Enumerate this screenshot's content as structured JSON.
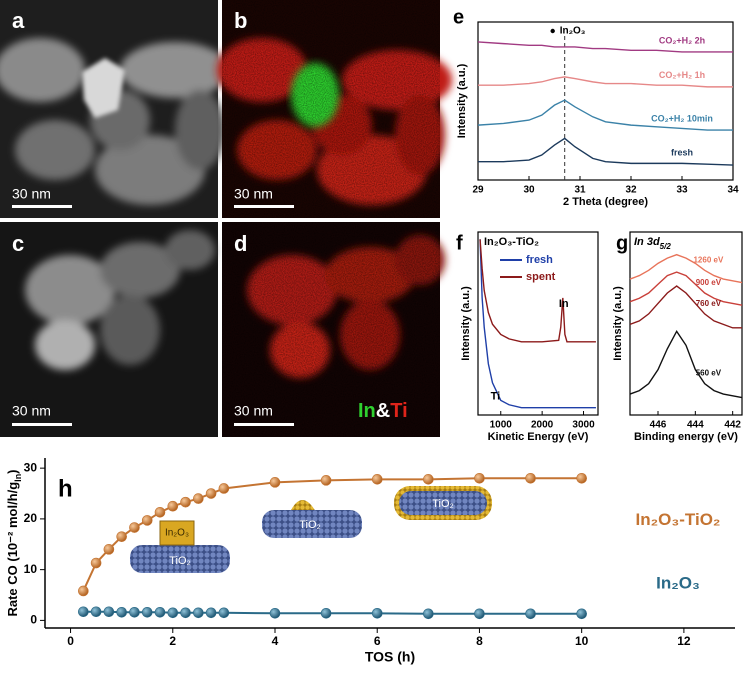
{
  "images": [
    {
      "label": "a",
      "scale_bar": "30 nm"
    },
    {
      "label": "b",
      "scale_bar": "30 nm"
    },
    {
      "label": "c",
      "scale_bar": "30 nm"
    },
    {
      "label": "d",
      "scale_bar": "30 nm",
      "legend": [
        "In",
        "&",
        "Ti"
      ]
    }
  ],
  "chart_data": [
    {
      "type": "line",
      "panel": "e",
      "marker_label": "In₂O₃",
      "ref_x": 30.7,
      "xlabel": "2 Theta (degree)",
      "ylabel": "Intensity  (a.u.)",
      "xlim": [
        29,
        34
      ],
      "xticks": [
        29,
        30,
        31,
        32,
        33,
        34
      ],
      "ylim": [
        0,
        9.5
      ],
      "x": [
        29,
        29.5,
        30,
        30.25,
        30.5,
        30.7,
        30.9,
        31.25,
        31.5,
        32,
        32.5,
        33,
        33.5,
        34
      ],
      "series": [
        {
          "name": "fresh",
          "color": "#1c3a5c",
          "values": [
            1.1,
            1.1,
            1.2,
            1.5,
            2.1,
            2.5,
            2.0,
            1.3,
            1.1,
            1.0,
            1.0,
            1.0,
            0.95,
            0.9
          ]
        },
        {
          "name": "CO₂+H₂ 10min",
          "color": "#3b82a8",
          "values": [
            3.3,
            3.4,
            3.6,
            3.9,
            4.5,
            4.8,
            4.4,
            3.8,
            3.5,
            3.3,
            3.2,
            3.1,
            3.0,
            3.0
          ]
        },
        {
          "name": "CO₂+H₂ 1h",
          "color": "#e68888",
          "values": [
            5.7,
            5.7,
            5.8,
            5.9,
            6.1,
            6.2,
            6.1,
            5.9,
            5.8,
            5.8,
            5.7,
            5.7,
            5.6,
            5.6
          ]
        },
        {
          "name": "CO₂+H₂ 2h",
          "color": "#a13a82",
          "values": [
            8.3,
            8.2,
            8.1,
            8.1,
            8.0,
            8.0,
            8.0,
            7.9,
            7.9,
            7.8,
            7.8,
            7.7,
            7.7,
            7.7
          ]
        }
      ]
    },
    {
      "type": "line",
      "panel": "f",
      "title": "In₂O₃-TiO₂",
      "annotations": [
        "In",
        "Ti"
      ],
      "xlabel": "Kinetic Energy (eV)",
      "ylabel": "Intensity (a.u.)",
      "xlim": [
        450,
        3350
      ],
      "xticks": [
        1000,
        2000,
        3000
      ],
      "ylim": [
        0,
        12.5
      ],
      "x": [
        500,
        550,
        600,
        700,
        800,
        1000,
        1200,
        1500,
        2000,
        2400,
        2450,
        2500,
        2550,
        2600,
        3000,
        3300
      ],
      "series": [
        {
          "name": "fresh",
          "color": "#1f3fa8",
          "values": [
            12,
            8,
            6,
            3.5,
            2.2,
            1.0,
            0.7,
            0.5,
            0.5,
            0.5,
            0.5,
            0.5,
            0.5,
            0.5,
            0.5,
            0.5
          ]
        },
        {
          "name": "spent",
          "color": "#8c1a1a",
          "values": [
            12,
            10,
            8.5,
            7,
            6.2,
            5.5,
            5.2,
            5.0,
            5.0,
            5.1,
            6.0,
            8.0,
            5.5,
            5.0,
            5.0,
            5.0
          ]
        }
      ]
    },
    {
      "type": "line",
      "panel": "g",
      "title": {
        "main": "In 3d",
        "sub": "5/2"
      },
      "xlabel": "Binding energy (eV)",
      "ylabel": "Intensity (a.u.)",
      "xlim": [
        447.5,
        441.5
      ],
      "xticks": [
        446,
        444,
        442
      ],
      "ylim": [
        0,
        10.5
      ],
      "x": [
        447.5,
        447,
        446.5,
        446,
        445.5,
        445,
        444.5,
        444,
        443.5,
        443,
        442.5,
        442,
        441.5
      ],
      "series": [
        {
          "name": "560 eV",
          "color": "#111111",
          "values": [
            1.2,
            1.4,
            1.8,
            2.6,
            3.8,
            4.8,
            4.0,
            2.6,
            1.8,
            1.4,
            1.2,
            1.1,
            1.0
          ]
        },
        {
          "name": "760 eV",
          "color": "#8b1a1a",
          "values": [
            5.2,
            5.4,
            5.8,
            6.4,
            7.0,
            7.4,
            7.0,
            6.4,
            5.8,
            5.4,
            5.2,
            5.0,
            5.0
          ]
        },
        {
          "name": "900 eV",
          "color": "#c9403a",
          "values": [
            6.5,
            6.7,
            7.0,
            7.5,
            8.0,
            8.2,
            8.0,
            7.5,
            7.0,
            6.7,
            6.5,
            6.4,
            6.3
          ]
        },
        {
          "name": "1260 eV",
          "color": "#e8745a",
          "values": [
            7.8,
            8.0,
            8.3,
            8.7,
            9.0,
            9.2,
            9.0,
            8.7,
            8.3,
            8.0,
            7.8,
            7.7,
            7.6
          ]
        }
      ]
    },
    {
      "type": "line",
      "panel": "h",
      "markers": true,
      "xlabel": "TOS (h)",
      "ylabel": {
        "main": "Rate CO (10⁻² mol/h/g",
        "sub": "In",
        "close": ")"
      },
      "schematic_labels": [
        "In₂O₃",
        "TiO₂",
        "TiO₂",
        "TiO₂"
      ],
      "xlim": [
        -0.5,
        13
      ],
      "xticks": [
        0,
        2,
        4,
        6,
        8,
        10,
        12
      ],
      "ylim": [
        -1.5,
        32
      ],
      "yticks": [
        0,
        10,
        20,
        30
      ],
      "x": [
        0.25,
        0.5,
        0.75,
        1,
        1.25,
        1.5,
        1.75,
        2,
        2.25,
        2.5,
        2.75,
        3,
        4,
        5,
        6,
        7,
        8,
        9,
        10
      ],
      "series": [
        {
          "name": "In₂O₃-TiO₂",
          "color": "#c47432",
          "values": [
            5.8,
            11.3,
            14,
            16.5,
            18.3,
            19.7,
            21.3,
            22.5,
            23.3,
            24,
            25,
            26,
            27.2,
            27.6,
            27.8,
            27.8,
            28,
            28,
            28
          ]
        },
        {
          "name": "In₂O₃",
          "color": "#2a6a88",
          "values": [
            1.7,
            1.7,
            1.7,
            1.6,
            1.6,
            1.6,
            1.6,
            1.5,
            1.5,
            1.5,
            1.5,
            1.5,
            1.4,
            1.4,
            1.4,
            1.3,
            1.3,
            1.3,
            1.3
          ]
        }
      ]
    }
  ]
}
